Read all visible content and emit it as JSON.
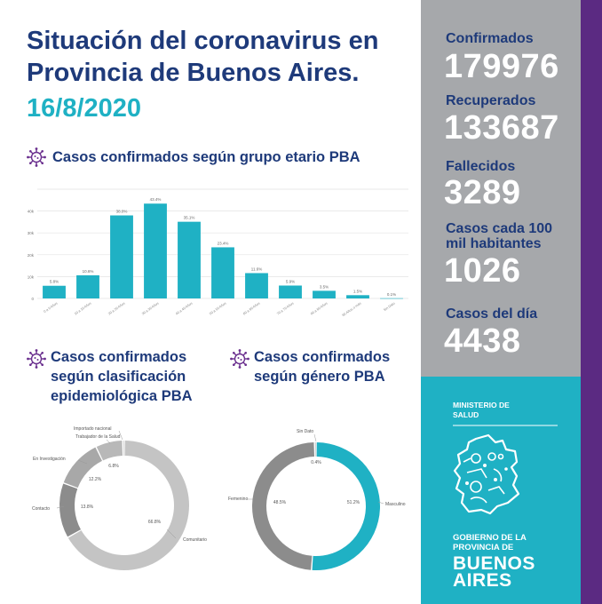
{
  "header": {
    "title_line1": "Situación del coronavirus en",
    "title_line2": "Provincia de Buenos Aires.",
    "date": "16/8/2020"
  },
  "sections": {
    "age_title": "Casos confirmados según grupo etario PBA",
    "epi_title_line1": "Casos confirmados",
    "epi_title_line2": "según clasificación",
    "epi_title_line3": "epidemiológica PBA",
    "gender_title_line1": "Casos confirmados",
    "gender_title_line2": "según género PBA"
  },
  "stats": {
    "confirmados_label": "Confirmados",
    "confirmados_value": "179976",
    "recuperados_label": "Recuperados",
    "recuperados_value": "133687",
    "fallecidos_label": "Fallecidos",
    "fallecidos_value": "3289",
    "casos_100mil_label_line1": "Casos cada 100",
    "casos_100mil_label_line2": "mil habitantes",
    "casos_100mil_value": "1026",
    "casos_dia_label": "Casos del día",
    "casos_dia_value": "4438"
  },
  "branding": {
    "ministerio_line1": "MINISTERIO DE",
    "ministerio_line2": "SALUD",
    "gobierno_line1": "GOBIERNO DE LA",
    "gobierno_line2": "PROVINCIA DE",
    "buenos": "BUENOS",
    "aires": "AIRES"
  },
  "colors": {
    "navy": "#1e3a7a",
    "teal": "#1fb1c4",
    "gray_panel": "#a6a8ab",
    "purple": "#5b2a82",
    "icon_purple": "#6a2f8e"
  },
  "icons": [
    "virus-icon"
  ],
  "chart_data": [
    {
      "type": "bar",
      "title": "Casos confirmados según grupo etario PBA",
      "categories": [
        "0 a 9 Años",
        "10 a 19 Años",
        "20 a 29 Años",
        "30 a 39 Años",
        "40 a 49 Años",
        "50 a 59 Años",
        "60 a 69 Años",
        "70 a 79 Años",
        "80 a 89 Años",
        "90 Años o más",
        "Sin Dato"
      ],
      "values": [
        5.8,
        10.6,
        38.0,
        43.4,
        35.1,
        23.4,
        11.6,
        5.9,
        3.5,
        1.5,
        0.1
      ],
      "value_labels": [
        "5.8%",
        "10.6%",
        "38.0%",
        "43.4%",
        "35.1%",
        "23.4%",
        "11.6%",
        "5.9%",
        "3.5%",
        "1.5%",
        "0.1%"
      ],
      "yticks": [
        "0",
        "10k",
        "20k",
        "30k",
        "40k"
      ],
      "ylim": [
        0,
        50
      ],
      "grid": true,
      "color": "#1fb1c4"
    },
    {
      "type": "pie",
      "title": "Casos confirmados según clasificación epidemiológica PBA",
      "categories": [
        "Comunitario",
        "Contacto",
        "En Investigación",
        "Trabajador de la Salud",
        "Importado nacional"
      ],
      "values": [
        66.8,
        13.8,
        12.2,
        6.8,
        0.4
      ],
      "value_labels": [
        "66.8%",
        "13.8%",
        "12.2%",
        "6.8%",
        ""
      ],
      "colors": [
        "#c4c4c4",
        "#8c8c8c",
        "#a8a8a8",
        "#b8b8b8",
        "#707070"
      ]
    },
    {
      "type": "pie",
      "title": "Casos confirmados según género PBA",
      "categories": [
        "Masculino",
        "Femenino",
        "Sin Dato"
      ],
      "values": [
        51.2,
        48.5,
        0.4
      ],
      "value_labels": [
        "51.2%",
        "48.5%",
        "0.4%"
      ],
      "colors": [
        "#1fb1c4",
        "#8c8c8c",
        "#555555"
      ]
    }
  ]
}
